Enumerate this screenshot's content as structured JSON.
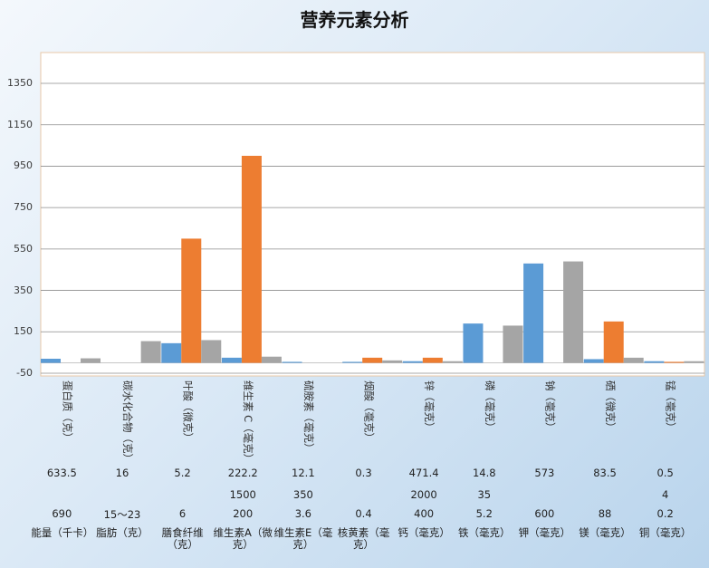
{
  "chart_data": {
    "type": "bar",
    "title": "营养元素分析",
    "ylim": [
      -50,
      1350
    ],
    "yticks": [
      -50,
      150,
      350,
      550,
      750,
      950,
      1150,
      1350
    ],
    "grid": true,
    "categories": [
      "蛋白质（克）",
      "碳水化合物（克）",
      "叶酸（微克）",
      "维生素 C（毫克）",
      "硫胺素（毫克）",
      "烟酸（毫克）",
      "锌（毫克）",
      "磷（毫克）",
      "钠（毫克）",
      "硒（微克）",
      "锰（毫克）"
    ],
    "series": [
      {
        "color": "#5b9bd5",
        "values": [
          20,
          0,
          95,
          25,
          5,
          5,
          8,
          190,
          480,
          18,
          8
        ]
      },
      {
        "color": "#ed7d31",
        "values": [
          0,
          0,
          600,
          1000,
          0,
          25,
          25,
          0,
          0,
          200,
          5
        ]
      },
      {
        "color": "#a5a5a5",
        "values": [
          22,
          105,
          110,
          30,
          0,
          12,
          8,
          180,
          490,
          25,
          8
        ]
      }
    ]
  },
  "table": {
    "row1": [
      "633.5",
      "16",
      "5.2",
      "222.2",
      "12.1",
      "0.3",
      "471.4",
      "14.8",
      "573",
      "83.5",
      "0.5"
    ],
    "row2": [
      "",
      "",
      "",
      "1500",
      "350",
      "",
      "2000",
      "35",
      "",
      "",
      "4"
    ],
    "row3": [
      "690",
      "15～23",
      "6",
      "200",
      "3.6",
      "0.4",
      "400",
      "5.2",
      "600",
      "88",
      "0.2"
    ],
    "row4": [
      "能量（千卡）",
      "脂肪（克）",
      "膳食纤维（克）",
      "维生素A（微克）",
      "维生素E（毫克）",
      "核黄素（毫克）",
      "钙（毫克）",
      "铁（毫克）",
      "钾（毫克）",
      "镁（毫克）",
      "铜（毫克）"
    ]
  }
}
